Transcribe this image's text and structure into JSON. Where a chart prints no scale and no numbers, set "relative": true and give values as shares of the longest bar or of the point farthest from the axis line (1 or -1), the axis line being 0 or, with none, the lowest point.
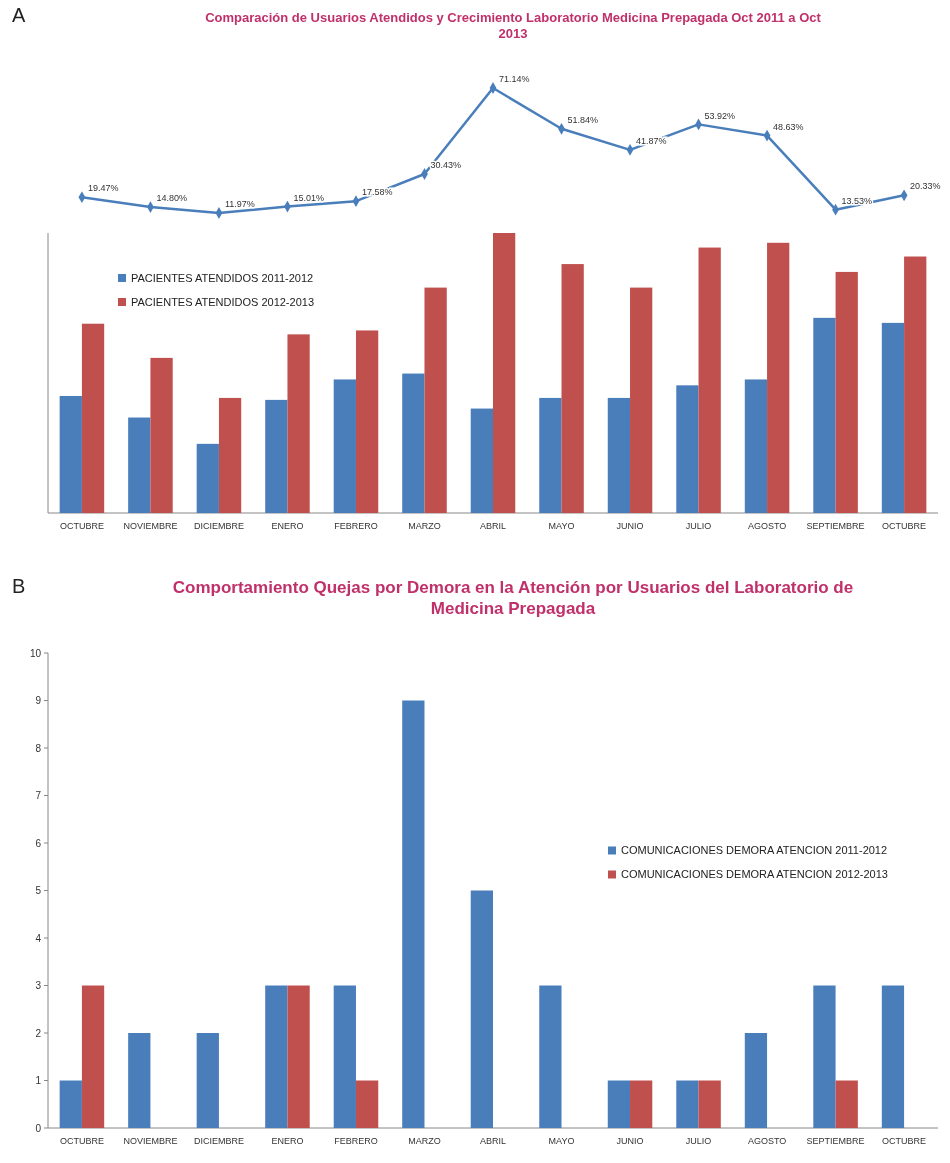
{
  "chart_data": [
    {
      "type": "line",
      "title": "Comparación de Usuarios Atendidos y Crecimiento Laboratorio Medicina Prepagada Oct 2011 a Oct 2013",
      "annotations": [
        "A"
      ],
      "marker": "diamond",
      "series": [
        {
          "color": "#4a7ebb",
          "values": [
            19.47,
            14.8,
            11.97,
            15.01,
            17.58,
            30.43,
            71.14,
            51.84,
            41.87,
            53.92,
            48.63,
            13.53,
            20.33
          ],
          "value_labels": [
            "19.47%",
            "14.80%",
            "11.97%",
            "15.01%",
            "17.58%",
            "30.43%",
            "71.14%",
            "51.84%",
            "41.87%",
            "53.92%",
            "48.63%",
            "13.53%",
            "20.33%"
          ]
        }
      ]
    },
    {
      "type": "bar",
      "relative": true,
      "legend": "top left",
      "categories": [
        "OCTUBRE",
        "NOVIEMBRE",
        "DICIEMBRE",
        "ENERO",
        "FEBRERO",
        "MARZO",
        "ABRIL",
        "MAYO",
        "JUNIO",
        "JULIO",
        "AGOSTO",
        "SEPTIEMBRE",
        "OCTUBRE"
      ],
      "series": [
        {
          "name": "PACIENTES ATENDIDOS 2011-2012",
          "color": "#4a7ebb",
          "values": [
            0.418,
            0.341,
            0.247,
            0.404,
            0.477,
            0.498,
            0.373,
            0.411,
            0.411,
            0.456,
            0.477,
            0.697,
            0.679
          ]
        },
        {
          "name": "PACIENTES ATENDIDOS 2012-2013",
          "color": "#c0504d",
          "values": [
            0.676,
            0.554,
            0.411,
            0.638,
            0.652,
            0.805,
            1,
            0.889,
            0.805,
            0.948,
            0.965,
            0.861,
            0.916
          ]
        }
      ]
    },
    {
      "type": "bar",
      "title": "Comportamiento Quejas por Demora en la Atención por Usuarios del Laboratorio de Medicina Prepagada",
      "annotations": [
        "B"
      ],
      "legend": "right",
      "ylim": [
        0,
        10
      ],
      "yticks": [
        0,
        1,
        2,
        3,
        4,
        5,
        6,
        7,
        8,
        9,
        10
      ],
      "categories": [
        "OCTUBRE",
        "NOVIEMBRE",
        "DICIEMBRE",
        "ENERO",
        "FEBRERO",
        "MARZO",
        "ABRIL",
        "MAYO",
        "JUNIO",
        "JULIO",
        "AGOSTO",
        "SEPTIEMBRE",
        "OCTUBRE"
      ],
      "series": [
        {
          "name": "COMUNICACIONES DEMORA ATENCION 2011-2012",
          "color": "#4a7ebb",
          "values": [
            1,
            2,
            2,
            3,
            3,
            9,
            5,
            3,
            1,
            1,
            2,
            3,
            3
          ]
        },
        {
          "name": "COMUNICACIONES DEMORA ATENCION 2012-2013",
          "color": "#c0504d",
          "values": [
            3,
            0,
            0,
            3,
            1,
            0,
            0,
            0,
            1,
            1,
            0,
            1,
            0
          ]
        }
      ]
    }
  ]
}
